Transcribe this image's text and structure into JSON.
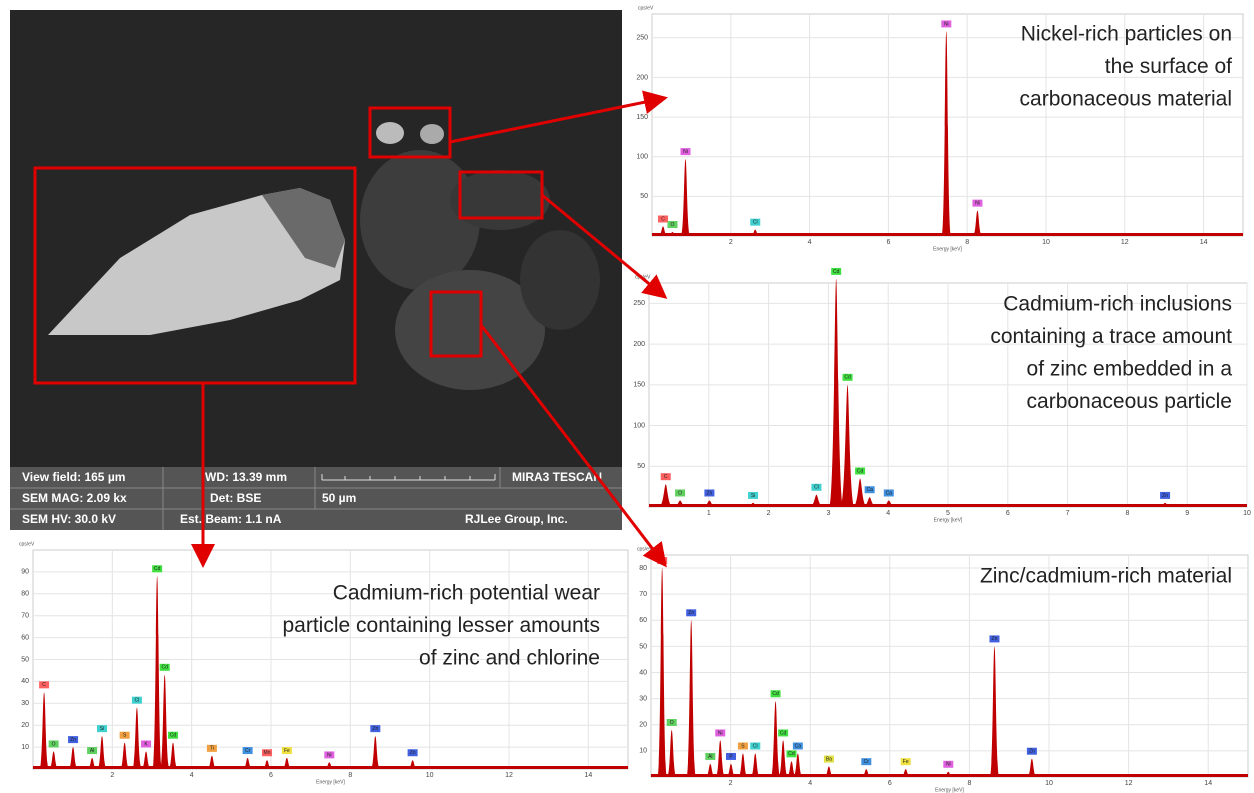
{
  "sem_info": {
    "view_field": "View field: 165 µm",
    "wd": "WD: 13.39 mm",
    "brand": "MIRA3 TESCAN",
    "mag": "SEM MAG: 2.09 kx",
    "det": "Det: BSE",
    "scale": "50 µm",
    "hv": "SEM HV: 30.0 kV",
    "beam": "Est. Beam: 1.1 nA",
    "lab": "RJLee Group, Inc."
  },
  "element_colors": {
    "C": "#ff6060",
    "O": "#60d060",
    "Ni": "#e060e0",
    "Cl": "#40d0d0",
    "Zn": "#4060e0",
    "Si": "#40d0d0",
    "Cd": "#40e040",
    "Ca": "#4090e0",
    "Al": "#60d060",
    "S": "#f0a040",
    "K": "#e060e0",
    "Ti": "#f0a040",
    "Ba": "#e0e040",
    "Cr": "#4090e0",
    "Mn": "#ff6060",
    "Fe": "#f0e040",
    "P": "#4060e0"
  },
  "chart_data": [
    {
      "type": "spectrum",
      "color": "#c00000",
      "y_label": "cps/eV",
      "x_label": "Energy [keV]",
      "caption": [
        "Nickel-rich particles on",
        "the surface of",
        "carbonaceous material"
      ],
      "xlim": [
        0,
        15
      ],
      "ylim": [
        0,
        280
      ],
      "xticks": [
        2,
        4,
        6,
        8,
        10,
        12,
        14
      ],
      "yticks": [
        50,
        100,
        150,
        200,
        250
      ],
      "grid": true,
      "peaks": [
        {
          "label": "C",
          "x": 0.28,
          "y": 12
        },
        {
          "label": "O",
          "x": 0.52,
          "y": 5
        },
        {
          "label": "Ni",
          "x": 0.85,
          "y": 97
        },
        {
          "label": "Cl",
          "x": 2.62,
          "y": 8
        },
        {
          "label": "Ni",
          "x": 7.47,
          "y": 258
        },
        {
          "label": "Ni",
          "x": 8.26,
          "y": 32
        }
      ]
    },
    {
      "type": "spectrum",
      "color": "#c00000",
      "y_label": "cps/eV",
      "x_label": "Energy [keV]",
      "caption": [
        "Cadmium-rich inclusions",
        "containing a trace amount",
        "of zinc embedded in a",
        "carbonaceous particle"
      ],
      "xlim": [
        0,
        10
      ],
      "ylim": [
        0,
        275
      ],
      "xticks": [
        1,
        2,
        3,
        4,
        5,
        6,
        7,
        8,
        9,
        10
      ],
      "yticks": [
        50,
        100,
        150,
        200,
        250
      ],
      "grid": true,
      "peaks": [
        {
          "label": "C",
          "x": 0.28,
          "y": 28
        },
        {
          "label": "O",
          "x": 0.52,
          "y": 8
        },
        {
          "label": "Zn",
          "x": 1.01,
          "y": 8
        },
        {
          "label": "Si",
          "x": 1.74,
          "y": 5
        },
        {
          "label": "Cl",
          "x": 2.8,
          "y": 15
        },
        {
          "label": "Cd",
          "x": 3.13,
          "y": 280
        },
        {
          "label": "Cd",
          "x": 3.32,
          "y": 150
        },
        {
          "label": "Cd",
          "x": 3.53,
          "y": 35
        },
        {
          "label": "Ca",
          "x": 3.69,
          "y": 12
        },
        {
          "label": "Ca",
          "x": 4.01,
          "y": 8
        },
        {
          "label": "Zn",
          "x": 8.63,
          "y": 5
        }
      ]
    },
    {
      "type": "spectrum",
      "color": "#c00000",
      "y_label": "cps/eV",
      "x_label": "Energy [keV]",
      "caption": [
        "Cadmium-rich potential wear",
        "particle containing lesser amounts",
        "of zinc and chlorine"
      ],
      "xlim": [
        0,
        15
      ],
      "ylim": [
        0,
        100
      ],
      "xticks": [
        2,
        4,
        6,
        8,
        10,
        12,
        14
      ],
      "yticks": [
        10,
        20,
        30,
        40,
        50,
        60,
        70,
        80,
        90
      ],
      "grid": true,
      "peaks": [
        {
          "label": "C",
          "x": 0.28,
          "y": 35
        },
        {
          "label": "O",
          "x": 0.52,
          "y": 8
        },
        {
          "label": "Zn",
          "x": 1.01,
          "y": 10
        },
        {
          "label": "Al",
          "x": 1.49,
          "y": 5
        },
        {
          "label": "Si",
          "x": 1.74,
          "y": 15
        },
        {
          "label": "S",
          "x": 2.31,
          "y": 12
        },
        {
          "label": "Cl",
          "x": 2.62,
          "y": 28
        },
        {
          "label": "K",
          "x": 2.85,
          "y": 8
        },
        {
          "label": "Cd",
          "x": 3.13,
          "y": 88
        },
        {
          "label": "Cd",
          "x": 3.32,
          "y": 43
        },
        {
          "label": "Cd",
          "x": 3.53,
          "y": 12
        },
        {
          "label": "Ti",
          "x": 4.51,
          "y": 6
        },
        {
          "label": "Cr",
          "x": 5.41,
          "y": 5
        },
        {
          "label": "Mn",
          "x": 5.9,
          "y": 4
        },
        {
          "label": "Fe",
          "x": 6.4,
          "y": 5
        },
        {
          "label": "Ni",
          "x": 7.47,
          "y": 3
        },
        {
          "label": "Zn",
          "x": 8.63,
          "y": 15
        },
        {
          "label": "Zn",
          "x": 9.57,
          "y": 4
        }
      ]
    },
    {
      "type": "spectrum",
      "color": "#c00000",
      "y_label": "cps/eV",
      "x_label": "Energy [keV]",
      "caption": [
        "Zinc/cadmium-rich material"
      ],
      "xlim": [
        0,
        15
      ],
      "ylim": [
        0,
        85
      ],
      "xticks": [
        2,
        4,
        6,
        8,
        10,
        12,
        14
      ],
      "yticks": [
        10,
        20,
        30,
        40,
        50,
        60,
        70,
        80
      ],
      "grid": true,
      "peaks": [
        {
          "label": "C",
          "x": 0.28,
          "y": 80
        },
        {
          "label": "O",
          "x": 0.52,
          "y": 18
        },
        {
          "label": "Zn",
          "x": 1.01,
          "y": 60
        },
        {
          "label": "Al",
          "x": 1.49,
          "y": 5
        },
        {
          "label": "Ni",
          "x": 1.74,
          "y": 14
        },
        {
          "label": "P",
          "x": 2.01,
          "y": 5
        },
        {
          "label": "S",
          "x": 2.31,
          "y": 9
        },
        {
          "label": "Cl",
          "x": 2.62,
          "y": 9
        },
        {
          "label": "Cd",
          "x": 3.13,
          "y": 29
        },
        {
          "label": "Cd",
          "x": 3.32,
          "y": 14
        },
        {
          "label": "Cd",
          "x": 3.53,
          "y": 6
        },
        {
          "label": "Ca",
          "x": 3.69,
          "y": 9
        },
        {
          "label": "Ba",
          "x": 4.47,
          "y": 4
        },
        {
          "label": "Cr",
          "x": 5.41,
          "y": 3
        },
        {
          "label": "Fe",
          "x": 6.4,
          "y": 3
        },
        {
          "label": "Ni",
          "x": 7.47,
          "y": 2
        },
        {
          "label": "Zn",
          "x": 8.63,
          "y": 50
        },
        {
          "label": "Zn",
          "x": 9.57,
          "y": 7
        }
      ]
    }
  ]
}
